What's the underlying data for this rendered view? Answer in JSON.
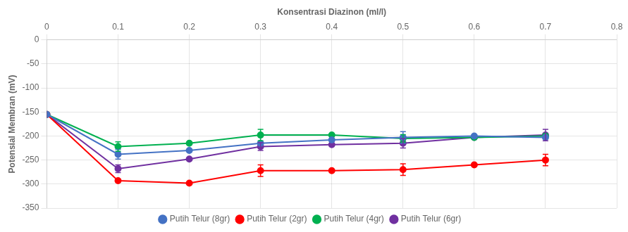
{
  "chart_data": {
    "type": "line",
    "x_label": "Konsentrasi Diazinon (ml/l)",
    "y_label": "Potensial Membran (mV)",
    "x": [
      0,
      0.1,
      0.2,
      0.3,
      0.4,
      0.5,
      0.6,
      0.7
    ],
    "series": [
      {
        "name": "Putih Telur (8gr)",
        "color": "#4472C4",
        "marker": "circle",
        "values": [
          -155,
          -238,
          -230,
          -215,
          -208,
          -203,
          -200,
          -203
        ],
        "yerr": [
          0,
          10,
          0,
          0,
          0,
          12,
          0,
          0
        ]
      },
      {
        "name": "Putih Telur (2gr)",
        "color": "#FF0000",
        "marker": "circle",
        "values": [
          -155,
          -293,
          -298,
          -272,
          -272,
          -270,
          -260,
          -250
        ],
        "yerr": [
          0,
          0,
          0,
          12,
          0,
          12,
          0,
          12
        ]
      },
      {
        "name": "Putih Telur (4gr)",
        "color": "#00B050",
        "marker": "circle",
        "values": [
          -155,
          -222,
          -215,
          -198,
          -198,
          -205,
          -203,
          -200
        ],
        "yerr": [
          0,
          10,
          0,
          12,
          0,
          8,
          0,
          0
        ]
      },
      {
        "name": "Putih Telur (6gr)",
        "color": "#7030A0",
        "marker": "circle",
        "values": [
          -155,
          -268,
          -248,
          -222,
          -218,
          -215,
          -203,
          -198
        ],
        "yerr": [
          0,
          8,
          0,
          8,
          0,
          10,
          0,
          12
        ]
      }
    ],
    "xlim": [
      0,
      0.8
    ],
    "ylim": [
      -350,
      0
    ],
    "xticks": [
      0,
      0.1,
      0.2,
      0.3,
      0.4,
      0.5,
      0.6,
      0.7,
      0.8
    ],
    "yticks": [
      0,
      -50,
      -100,
      -150,
      -200,
      -250,
      -300,
      -350
    ],
    "grid": true,
    "legend": "bottom"
  }
}
